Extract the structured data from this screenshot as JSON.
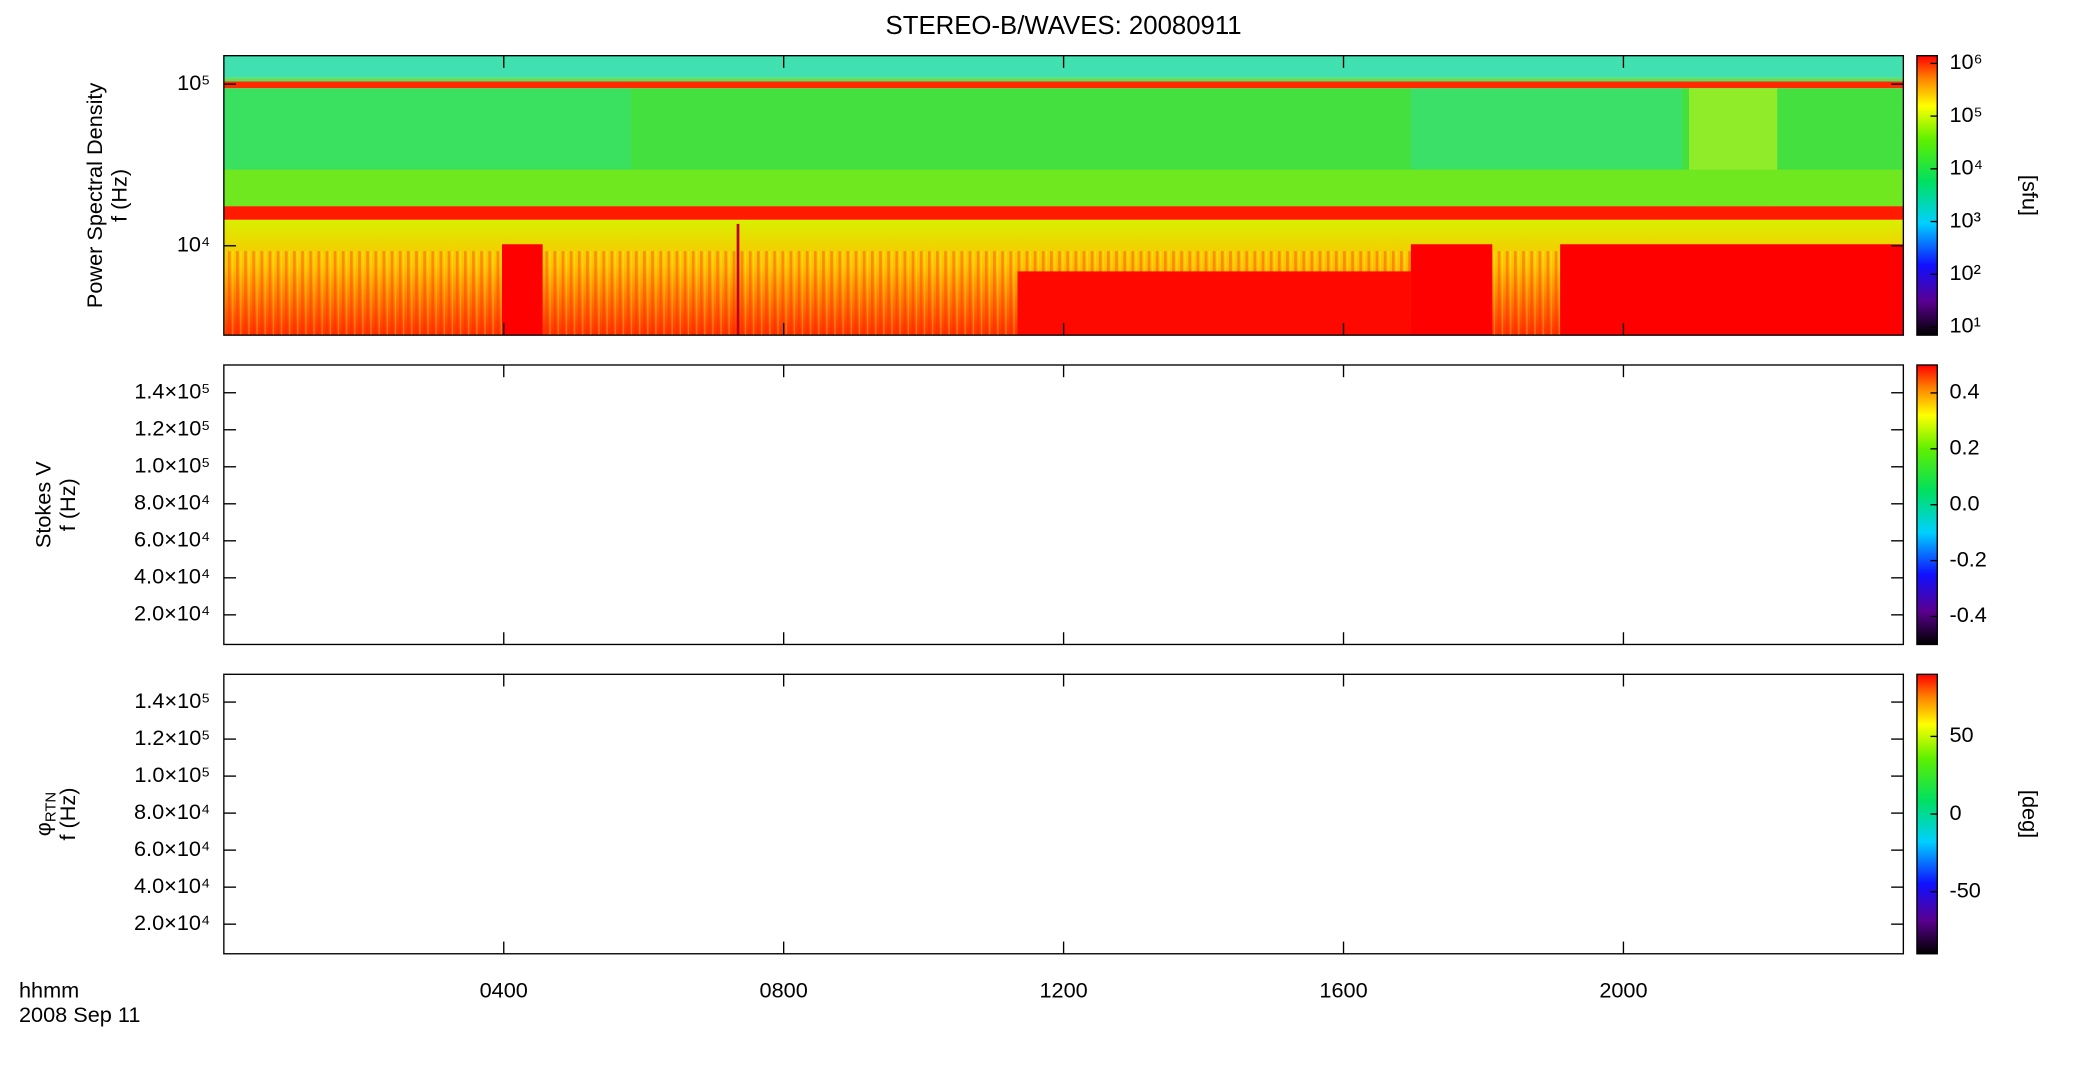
{
  "chart_data": [
    {
      "type": "spectrogram",
      "title": "STEREO-B/WAVES: 20080911",
      "ylabel": [
        "Power Spectral Density",
        "f (Hz)"
      ],
      "ylog": true,
      "ylim": [
        2800,
        150000
      ],
      "yticks": [
        {
          "value": 10000,
          "label": "10⁴"
        },
        {
          "value": 100000,
          "label": "10⁵"
        }
      ],
      "colorbar": {
        "label": "[sfu]",
        "log": true,
        "lim": [
          7,
          1400000
        ],
        "ticks": [
          {
            "value": 10,
            "label": "10¹"
          },
          {
            "value": 100,
            "label": "10²"
          },
          {
            "value": 1000,
            "label": "10³"
          },
          {
            "value": 10000,
            "label": "10⁴"
          },
          {
            "value": 100000,
            "label": "10⁵"
          },
          {
            "value": 1000000,
            "label": "10⁶"
          }
        ]
      }
    },
    {
      "type": "spectrogram",
      "ylabel": [
        "Stokes V",
        "f (Hz)"
      ],
      "ylog": false,
      "ylim": [
        4000,
        155000
      ],
      "yticks": [
        {
          "value": 20000,
          "label": "2.0×10⁴"
        },
        {
          "value": 40000,
          "label": "4.0×10⁴"
        },
        {
          "value": 60000,
          "label": "6.0×10⁴"
        },
        {
          "value": 80000,
          "label": "8.0×10⁴"
        },
        {
          "value": 100000,
          "label": "1.0×10⁵"
        },
        {
          "value": 120000,
          "label": "1.2×10⁵"
        },
        {
          "value": 140000,
          "label": "1.4×10⁵"
        }
      ],
      "colorbar": {
        "log": false,
        "lim": [
          -0.5,
          0.5
        ],
        "ticks": [
          -0.4,
          -0.2,
          {
            "value": 0,
            "label": "0.0"
          },
          0.2,
          0.4
        ]
      }
    },
    {
      "type": "spectrogram",
      "ylabel": [
        "φ",
        "f (Hz)"
      ],
      "ylabel_sub": "RTN",
      "ylog": false,
      "ylim": [
        4000,
        155000
      ],
      "yticks": [
        {
          "value": 20000,
          "label": "2.0×10⁴"
        },
        {
          "value": 40000,
          "label": "4.0×10⁴"
        },
        {
          "value": 60000,
          "label": "6.0×10⁴"
        },
        {
          "value": 80000,
          "label": "8.0×10⁴"
        },
        {
          "value": 100000,
          "label": "1.0×10⁵"
        },
        {
          "value": 120000,
          "label": "1.2×10⁵"
        },
        {
          "value": 140000,
          "label": "1.4×10⁵"
        }
      ],
      "colorbar": {
        "label": "[deg]",
        "log": false,
        "lim": [
          -90,
          90
        ],
        "ticks": [
          -50,
          0,
          50
        ]
      },
      "xlim": [
        0,
        24
      ],
      "xticks": [
        {
          "value": 4,
          "label": "0400"
        },
        {
          "value": 8,
          "label": "0800"
        },
        {
          "value": 12,
          "label": "1200"
        },
        {
          "value": 16,
          "label": "1600"
        },
        {
          "value": 20,
          "label": "2000"
        }
      ],
      "xlabel": [
        "hhmm",
        "2008 Sep 11"
      ]
    }
  ]
}
